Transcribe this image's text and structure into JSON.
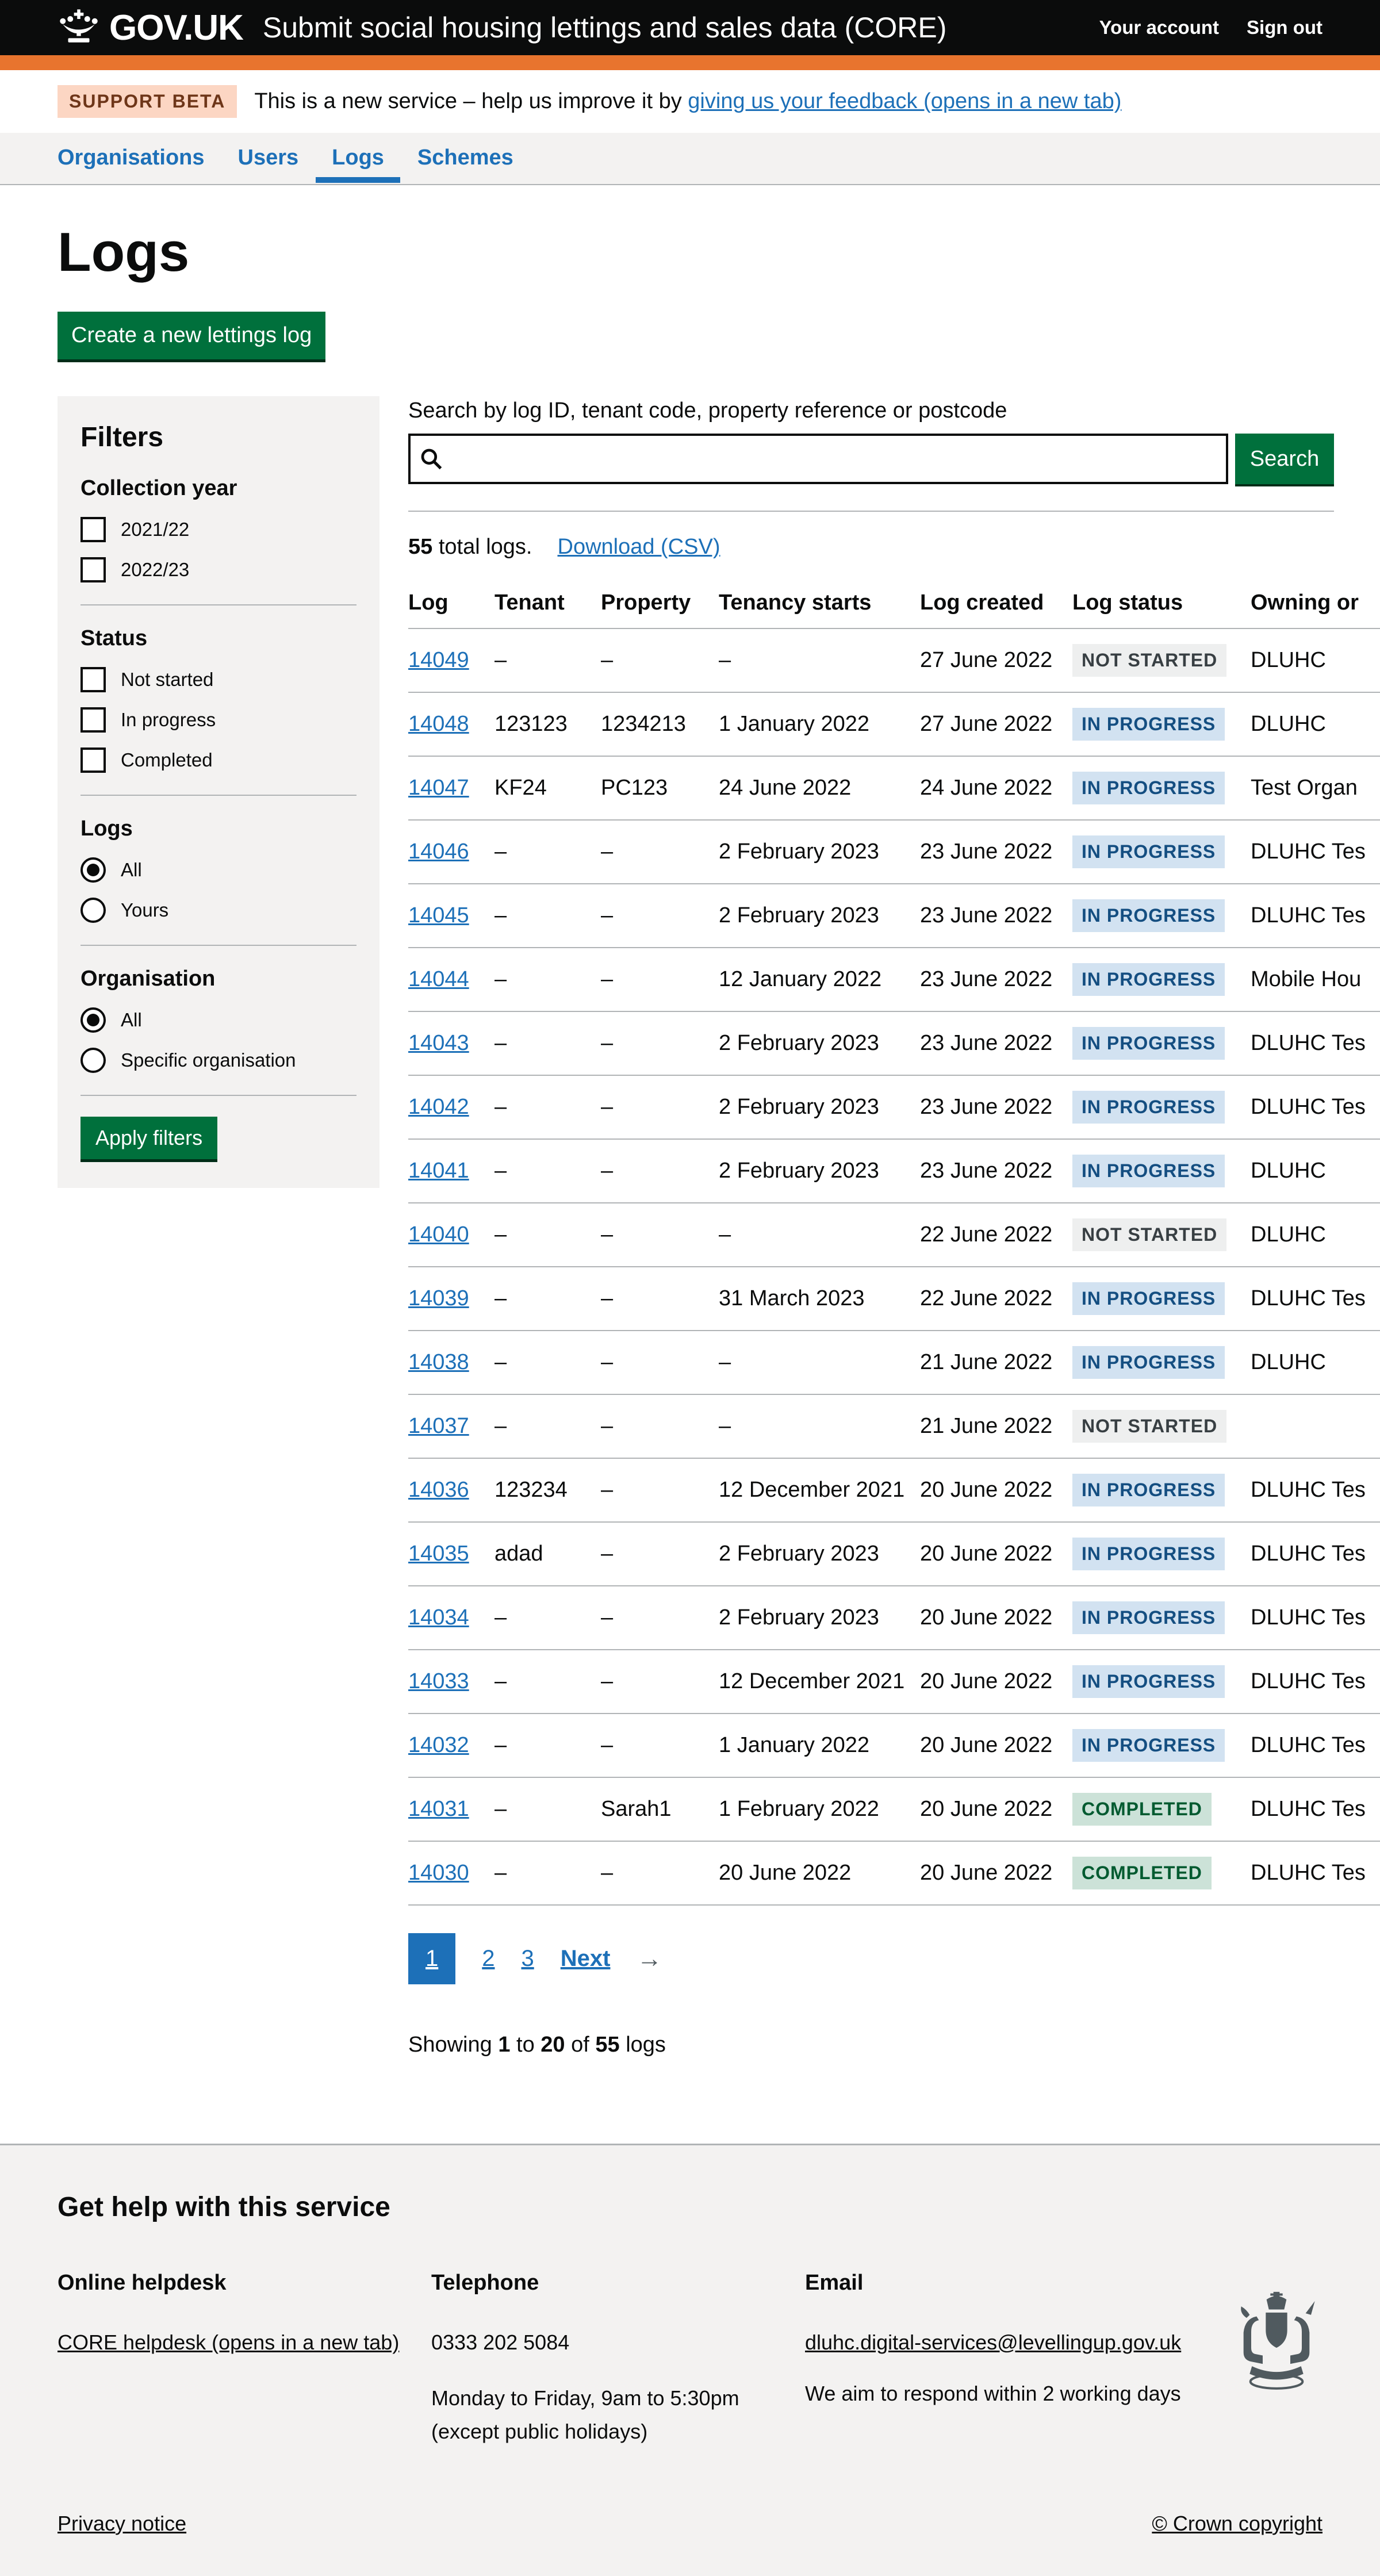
{
  "header": {
    "logo_text": "GOV.UK",
    "service_name": "Submit social housing lettings and sales data (CORE)",
    "account_link": "Your account",
    "signout_link": "Sign out"
  },
  "phase_banner": {
    "tag": "SUPPORT BETA",
    "text_before": "This is a new service – help us improve it by ",
    "feedback_link": "giving us your feedback (opens in a new tab)"
  },
  "nav": {
    "items": [
      {
        "label": "Organisations",
        "active": false
      },
      {
        "label": "Users",
        "active": false
      },
      {
        "label": "Logs",
        "active": true
      },
      {
        "label": "Schemes",
        "active": false
      }
    ]
  },
  "page": {
    "title": "Logs",
    "create_button": "Create a new lettings log"
  },
  "filters": {
    "title": "Filters",
    "groups": [
      {
        "label": "Collection year",
        "type": "checkbox",
        "options": [
          {
            "label": "2021/22",
            "checked": false
          },
          {
            "label": "2022/23",
            "checked": false
          }
        ]
      },
      {
        "label": "Status",
        "type": "checkbox",
        "options": [
          {
            "label": "Not started",
            "checked": false
          },
          {
            "label": "In progress",
            "checked": false
          },
          {
            "label": "Completed",
            "checked": false
          }
        ]
      },
      {
        "label": "Logs",
        "type": "radio",
        "options": [
          {
            "label": "All",
            "selected": true
          },
          {
            "label": "Yours",
            "selected": false
          }
        ]
      },
      {
        "label": "Organisation",
        "type": "radio",
        "options": [
          {
            "label": "All",
            "selected": true
          },
          {
            "label": "Specific organisation",
            "selected": false
          }
        ]
      }
    ],
    "apply_button": "Apply filters"
  },
  "search": {
    "label": "Search by log ID, tenant code, property reference or postcode",
    "value": "",
    "button": "Search"
  },
  "results": {
    "total_bold": "55",
    "total_rest": " total logs.",
    "download_link": "Download (CSV)"
  },
  "table": {
    "columns": [
      "Log",
      "Tenant",
      "Property",
      "Tenancy starts",
      "Log created",
      "Log status",
      "Owning or"
    ],
    "rows": [
      {
        "log": "14049",
        "tenant": "–",
        "property": "–",
        "tenancy_starts": "–",
        "log_created": "27 June 2022",
        "status": "NOT STARTED",
        "status_type": "grey",
        "owning": "DLUHC"
      },
      {
        "log": "14048",
        "tenant": "123123",
        "property": "1234213",
        "tenancy_starts": "1 January 2022",
        "log_created": "27 June 2022",
        "status": "IN PROGRESS",
        "status_type": "blue",
        "owning": "DLUHC"
      },
      {
        "log": "14047",
        "tenant": "KF24",
        "property": "PC123",
        "tenancy_starts": "24 June 2022",
        "log_created": "24 June 2022",
        "status": "IN PROGRESS",
        "status_type": "blue",
        "owning": "Test Organ"
      },
      {
        "log": "14046",
        "tenant": "–",
        "property": "–",
        "tenancy_starts": "2 February 2023",
        "log_created": "23 June 2022",
        "status": "IN PROGRESS",
        "status_type": "blue",
        "owning": "DLUHC Tes"
      },
      {
        "log": "14045",
        "tenant": "–",
        "property": "–",
        "tenancy_starts": "2 February 2023",
        "log_created": "23 June 2022",
        "status": "IN PROGRESS",
        "status_type": "blue",
        "owning": "DLUHC Tes"
      },
      {
        "log": "14044",
        "tenant": "–",
        "property": "–",
        "tenancy_starts": "12 January 2022",
        "log_created": "23 June 2022",
        "status": "IN PROGRESS",
        "status_type": "blue",
        "owning": "Mobile Hou"
      },
      {
        "log": "14043",
        "tenant": "–",
        "property": "–",
        "tenancy_starts": "2 February 2023",
        "log_created": "23 June 2022",
        "status": "IN PROGRESS",
        "status_type": "blue",
        "owning": "DLUHC Tes"
      },
      {
        "log": "14042",
        "tenant": "–",
        "property": "–",
        "tenancy_starts": "2 February 2023",
        "log_created": "23 June 2022",
        "status": "IN PROGRESS",
        "status_type": "blue",
        "owning": "DLUHC Tes"
      },
      {
        "log": "14041",
        "tenant": "–",
        "property": "–",
        "tenancy_starts": "2 February 2023",
        "log_created": "23 June 2022",
        "status": "IN PROGRESS",
        "status_type": "blue",
        "owning": "DLUHC"
      },
      {
        "log": "14040",
        "tenant": "–",
        "property": "–",
        "tenancy_starts": "–",
        "log_created": "22 June 2022",
        "status": "NOT STARTED",
        "status_type": "grey",
        "owning": "DLUHC"
      },
      {
        "log": "14039",
        "tenant": "–",
        "property": "–",
        "tenancy_starts": "31 March 2023",
        "log_created": "22 June 2022",
        "status": "IN PROGRESS",
        "status_type": "blue",
        "owning": "DLUHC Tes"
      },
      {
        "log": "14038",
        "tenant": "–",
        "property": "–",
        "tenancy_starts": "–",
        "log_created": "21 June 2022",
        "status": "IN PROGRESS",
        "status_type": "blue",
        "owning": "DLUHC"
      },
      {
        "log": "14037",
        "tenant": "–",
        "property": "–",
        "tenancy_starts": "–",
        "log_created": "21 June 2022",
        "status": "NOT STARTED",
        "status_type": "grey",
        "owning": ""
      },
      {
        "log": "14036",
        "tenant": "123234",
        "property": "–",
        "tenancy_starts": "12 December 2021",
        "log_created": "20 June 2022",
        "status": "IN PROGRESS",
        "status_type": "blue",
        "owning": "DLUHC Tes"
      },
      {
        "log": "14035",
        "tenant": "adad",
        "property": "–",
        "tenancy_starts": "2 February 2023",
        "log_created": "20 June 2022",
        "status": "IN PROGRESS",
        "status_type": "blue",
        "owning": "DLUHC Tes"
      },
      {
        "log": "14034",
        "tenant": "–",
        "property": "–",
        "tenancy_starts": "2 February 2023",
        "log_created": "20 June 2022",
        "status": "IN PROGRESS",
        "status_type": "blue",
        "owning": "DLUHC Tes"
      },
      {
        "log": "14033",
        "tenant": "–",
        "property": "–",
        "tenancy_starts": "12 December 2021",
        "log_created": "20 June 2022",
        "status": "IN PROGRESS",
        "status_type": "blue",
        "owning": "DLUHC Tes"
      },
      {
        "log": "14032",
        "tenant": "–",
        "property": "–",
        "tenancy_starts": "1 January 2022",
        "log_created": "20 June 2022",
        "status": "IN PROGRESS",
        "status_type": "blue",
        "owning": "DLUHC Tes"
      },
      {
        "log": "14031",
        "tenant": "–",
        "property": "Sarah1",
        "tenancy_starts": "1 February 2022",
        "log_created": "20 June 2022",
        "status": "COMPLETED",
        "status_type": "green",
        "owning": "DLUHC Tes"
      },
      {
        "log": "14030",
        "tenant": "–",
        "property": "–",
        "tenancy_starts": "20 June 2022",
        "log_created": "20 June 2022",
        "status": "COMPLETED",
        "status_type": "green",
        "owning": "DLUHC Tes"
      }
    ]
  },
  "pagination": {
    "current": "1",
    "pages": [
      "2",
      "3"
    ],
    "next_label": "Next",
    "arrow": "→"
  },
  "showing": {
    "prefix": "Showing ",
    "from": "1",
    "mid": " to ",
    "to": "20",
    "of": " of ",
    "total": "55",
    "suffix": " logs"
  },
  "footer": {
    "heading": "Get help with this service",
    "helpdesk": {
      "heading": "Online helpdesk",
      "link": "CORE helpdesk (opens in a new tab)"
    },
    "telephone": {
      "heading": "Telephone",
      "number": "0333 202 5084",
      "hours": "Monday to Friday, 9am to 5:30pm",
      "holidays": "(except public holidays)"
    },
    "email": {
      "heading": "Email",
      "address": "dluhc.digital-services@levellingup.gov.uk",
      "response": "We aim to respond within 2 working days"
    },
    "privacy_link": "Privacy notice",
    "copyright_link": "© Crown copyright"
  },
  "colors": {
    "header_bg": "#0b0c0c",
    "env_stripe": "#e8742e",
    "link_blue": "#1d70b8",
    "button_green": "#00703c",
    "panel_grey": "#f3f2f1",
    "border_grey": "#b1b4b6",
    "tag_grey_bg": "#eeefef",
    "tag_grey_text": "#383f43",
    "tag_blue_bg": "#d2e2f1",
    "tag_blue_text": "#144e81",
    "tag_green_bg": "#cce2d8",
    "tag_green_text": "#005a30",
    "beta_tag_bg": "#fcd6c3",
    "beta_tag_text": "#6e3619"
  }
}
